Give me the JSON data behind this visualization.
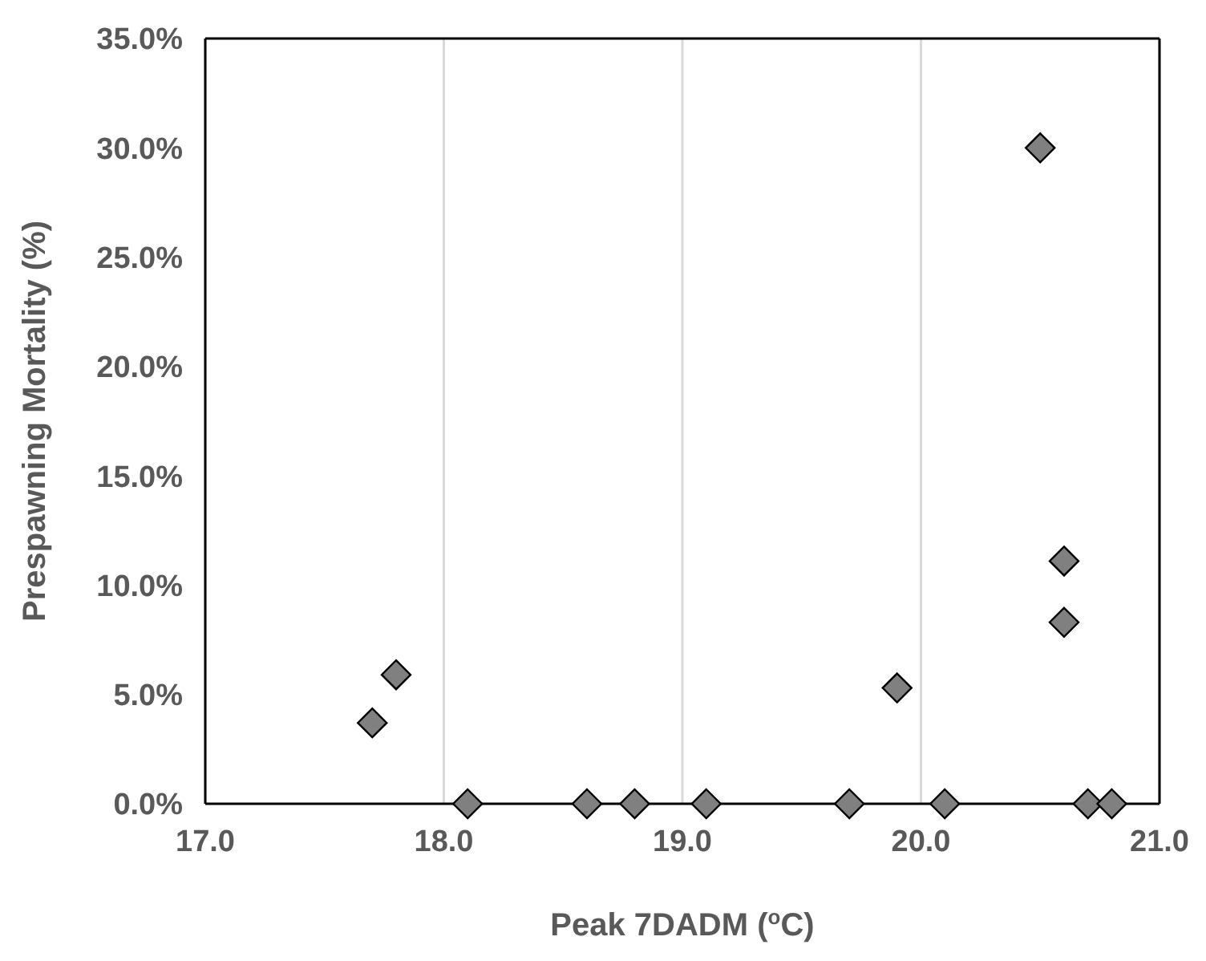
{
  "chart_data": {
    "type": "scatter",
    "xlabel": "Peak 7DADM ($^{o}$C)",
    "ylabel": "Prespawning  Mortality (%)",
    "series": [
      {
        "color": "#808080",
        "x": [
          17.7,
          17.8,
          18.1,
          18.6,
          18.8,
          19.1,
          19.7,
          19.9,
          20.1,
          20.5,
          20.6,
          20.6,
          20.7,
          20.8
        ],
        "values": [
          3.7,
          5.9,
          0,
          0,
          0,
          0,
          0,
          5.3,
          0,
          30.0,
          11.1,
          8.3,
          0,
          0
        ]
      }
    ],
    "marker": "diamond",
    "grid": "x",
    "xlim": [
      17,
      21
    ],
    "xticks": [
      {
        "value": 17,
        "label": "17.0"
      },
      {
        "value": 18,
        "label": "18.0"
      },
      {
        "value": 19,
        "label": "19.0"
      },
      {
        "value": 20,
        "label": "20.0"
      },
      {
        "value": 21,
        "label": "21.0"
      }
    ],
    "ylim": [
      0,
      35
    ],
    "yticks": [
      {
        "value": 0,
        "label": "0.0%"
      },
      {
        "value": 5,
        "label": "5.0%"
      },
      {
        "value": 10,
        "label": "10.0%"
      },
      {
        "value": 15,
        "label": "15.0%"
      },
      {
        "value": 20,
        "label": "20.0%"
      },
      {
        "value": 25,
        "label": "25.0%"
      },
      {
        "value": 30,
        "label": "30.0%"
      },
      {
        "value": 35,
        "label": "35.0%"
      }
    ]
  }
}
